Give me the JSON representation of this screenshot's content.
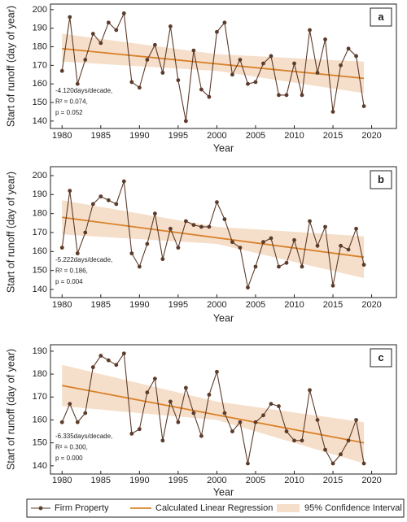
{
  "chart_data": [
    {
      "type": "line",
      "label": "a",
      "xlabel": "Year",
      "ylabel": "Start of runoff (day of year)",
      "x": [
        1980,
        1981,
        1982,
        1983,
        1984,
        1985,
        1986,
        1987,
        1988,
        1989,
        1990,
        1991,
        1992,
        1993,
        1994,
        1995,
        1996,
        1997,
        1998,
        1999,
        2000,
        2001,
        2002,
        2003,
        2004,
        2005,
        2006,
        2007,
        2008,
        2009,
        2010,
        2011,
        2012,
        2013,
        2014,
        2015,
        2016,
        2017,
        2018,
        2019
      ],
      "series": [
        {
          "color": "#5c3b2a",
          "values": [
            167,
            196,
            160,
            173,
            187,
            182,
            193,
            189,
            198,
            161,
            158,
            173,
            181,
            166,
            191,
            162,
            140,
            178,
            157,
            153,
            188,
            193,
            165,
            173,
            160,
            161,
            171,
            175,
            154,
            154,
            171,
            154,
            189,
            166,
            184,
            145,
            170,
            179,
            175,
            148
          ]
        }
      ],
      "regression": {
        "color": "#d9822b",
        "x": [
          1980,
          2019
        ],
        "values": [
          179,
          163
        ]
      },
      "confidence": {
        "color": "#f6dfca",
        "x": [
          1980,
          2000,
          2019
        ],
        "lower": [
          172,
          167,
          155
        ],
        "upper": [
          187,
          176,
          172
        ]
      },
      "annotation": [
        "-4.120days/decade,",
        "R² = 0.074,",
        "p = 0.052"
      ],
      "xlim": [
        1978.5,
        2023.2
      ],
      "ylim": [
        136,
        203
      ],
      "xticks": [
        1980,
        1985,
        1990,
        1995,
        2000,
        2005,
        2010,
        2015,
        2020
      ],
      "yticks": [
        140,
        150,
        160,
        170,
        180,
        190,
        200
      ]
    },
    {
      "type": "line",
      "label": "b",
      "xlabel": "Year",
      "ylabel": "Start of runoff (day of year)",
      "x": [
        1980,
        1981,
        1982,
        1983,
        1984,
        1985,
        1986,
        1987,
        1988,
        1989,
        1990,
        1991,
        1992,
        1993,
        1994,
        1995,
        1996,
        1997,
        1998,
        1999,
        2000,
        2001,
        2002,
        2003,
        2004,
        2005,
        2006,
        2007,
        2008,
        2009,
        2010,
        2011,
        2012,
        2013,
        2014,
        2015,
        2016,
        2017,
        2018,
        2019
      ],
      "series": [
        {
          "color": "#5c3b2a",
          "values": [
            162,
            192,
            159,
            170,
            185,
            189,
            187,
            185,
            197,
            159,
            152,
            164,
            180,
            156,
            172,
            162,
            176,
            174,
            173,
            173,
            186,
            177,
            165,
            162,
            141,
            152,
            165,
            167,
            152,
            154,
            166,
            152,
            176,
            163,
            173,
            142,
            163,
            161,
            172,
            153
          ]
        }
      ],
      "regression": {
        "color": "#d9822b",
        "x": [
          1980,
          2019
        ],
        "values": [
          178,
          157
        ]
      },
      "confidence": {
        "color": "#f6dfca",
        "x": [
          1980,
          2000,
          2019
        ],
        "lower": [
          169,
          164,
          146
        ],
        "upper": [
          187,
          173,
          168
        ]
      },
      "annotation": [
        "-5.222days/decade,",
        "R² = 0.186,",
        "p = 0.004"
      ],
      "xlim": [
        1978.5,
        2023.2
      ],
      "ylim": [
        135.7,
        204.7
      ],
      "xticks": [
        1980,
        1985,
        1990,
        1995,
        2000,
        2005,
        2010,
        2015,
        2020
      ],
      "yticks": [
        140,
        150,
        160,
        170,
        180,
        190,
        200
      ]
    },
    {
      "type": "line",
      "label": "c",
      "xlabel": "Year",
      "ylabel": "Start of runoff (day of year)",
      "x": [
        1980,
        1981,
        1982,
        1983,
        1984,
        1985,
        1986,
        1987,
        1988,
        1989,
        1990,
        1991,
        1992,
        1993,
        1994,
        1995,
        1996,
        1997,
        1998,
        1999,
        2000,
        2001,
        2002,
        2003,
        2004,
        2005,
        2006,
        2007,
        2008,
        2009,
        2010,
        2011,
        2012,
        2013,
        2014,
        2015,
        2016,
        2017,
        2018,
        2019
      ],
      "series": [
        {
          "color": "#5c3b2a",
          "values": [
            159,
            167,
            159,
            163,
            183,
            188,
            186,
            184,
            189,
            154,
            156,
            172,
            178,
            151,
            168,
            159,
            174,
            163,
            153,
            171,
            181,
            163,
            155,
            159,
            141,
            159,
            162,
            167,
            166,
            155,
            151,
            151,
            173,
            160,
            147,
            141,
            145,
            151,
            160,
            141
          ]
        }
      ],
      "regression": {
        "color": "#d9822b",
        "x": [
          1980,
          2019
        ],
        "values": [
          175,
          150
        ]
      },
      "confidence": {
        "color": "#f6dfca",
        "x": [
          1980,
          2000,
          2019
        ],
        "lower": [
          166,
          160,
          141
        ],
        "upper": [
          184,
          168,
          159
        ]
      },
      "annotation": [
        "-6.335days/decade,",
        "R² = 0.300,",
        "p = 0.000"
      ],
      "xlim": [
        1978.5,
        2023.2
      ],
      "ylim": [
        136.4,
        192.8
      ],
      "xticks": [
        1980,
        1985,
        1990,
        1995,
        2000,
        2005,
        2010,
        2015,
        2020
      ],
      "yticks": [
        140,
        150,
        160,
        170,
        180,
        190
      ]
    }
  ],
  "legend": [
    "Firm Property",
    "Calculated Linear Regression",
    "95% Confidence Interval"
  ]
}
